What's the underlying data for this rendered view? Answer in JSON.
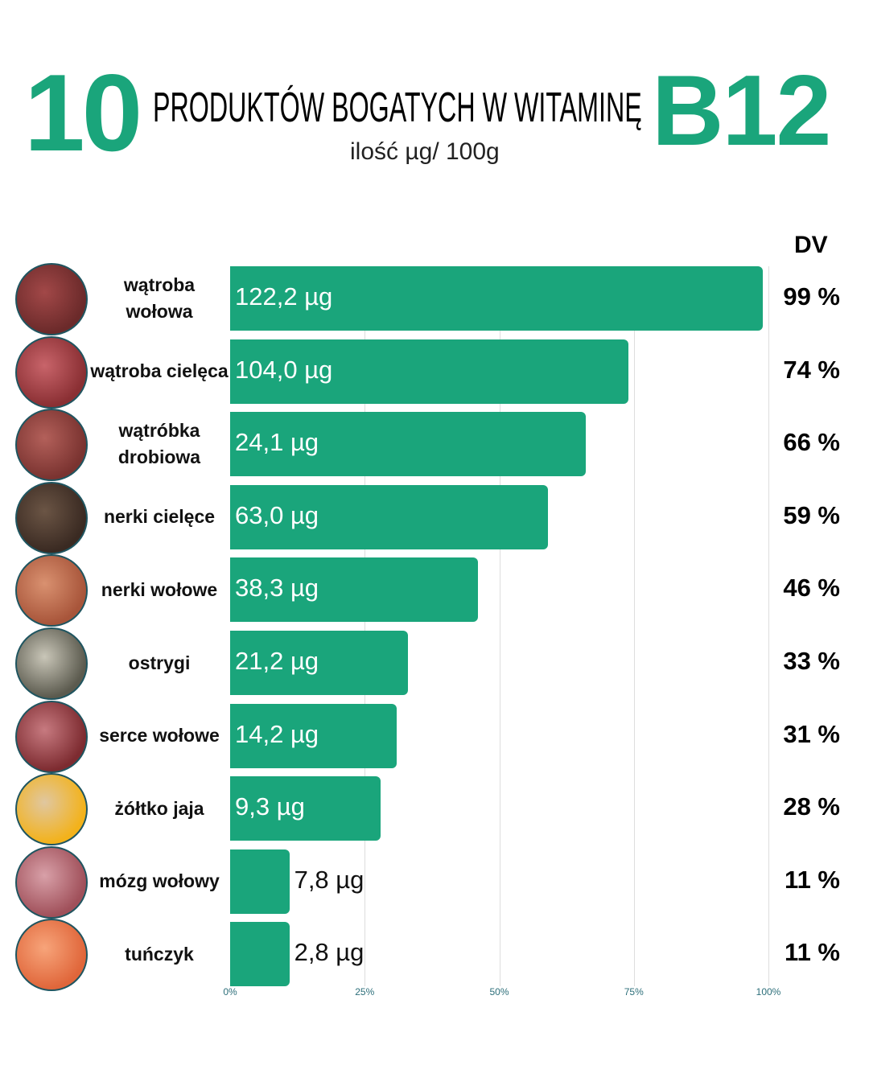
{
  "header": {
    "number": "10",
    "title": "PRODUKTÓW BOGATYCH W WITAMINĘ",
    "vitamin": "B12",
    "subtitle": "ilość µg/ 100g"
  },
  "chart_data": {
    "type": "bar",
    "orientation": "horizontal",
    "title": "10 PRODUKTÓW BOGATYCH W WITAMINĘ B12",
    "subtitle": "ilość µg/ 100g",
    "dv_header": "DV",
    "xlim": [
      0,
      100
    ],
    "x_ticks": [
      "0%",
      "25%",
      "50%",
      "75%",
      "100%"
    ],
    "grid": true,
    "bar_color": "#1aa57b",
    "categories": [
      "wątroba wołowa",
      "wątroba cielęca",
      "wątróbka drobiowa",
      "nerki cielęce",
      "nerki wołowe",
      "ostrygi",
      "serce wołowe",
      "żółtko jaja",
      "mózg wołowy",
      "tuńczyk"
    ],
    "values": [
      99,
      74,
      66,
      59,
      46,
      33,
      31,
      28,
      11,
      11
    ],
    "value_labels": [
      "122,2 µg",
      "104,0 µg",
      "24,1 µg",
      "63,0 µg",
      "38,3 µg",
      "21,2 µg",
      "14,2 µg",
      "9,3 µg",
      "7,8 µg",
      "2,8 µg"
    ],
    "dv_labels": [
      "99 %",
      "74 %",
      "66 %",
      "59 %",
      "46 %",
      "33 %",
      "31 %",
      "28 %",
      "11 %",
      "11 %"
    ],
    "photo_colors": [
      [
        "#6b2a2a",
        "#a24848"
      ],
      [
        "#8a2f33",
        "#c8646a"
      ],
      [
        "#7a3330",
        "#b3605a"
      ],
      [
        "#3a2a22",
        "#6b5545"
      ],
      [
        "#a8553a",
        "#d99170"
      ],
      [
        "#5b5a4e",
        "#c9c6b8"
      ],
      [
        "#7d2b30",
        "#c77a80"
      ],
      [
        "#f3b21a",
        "#e0c7a0"
      ],
      [
        "#a0505a",
        "#d8a0a8"
      ],
      [
        "#e0663a",
        "#f7a47a"
      ]
    ]
  }
}
